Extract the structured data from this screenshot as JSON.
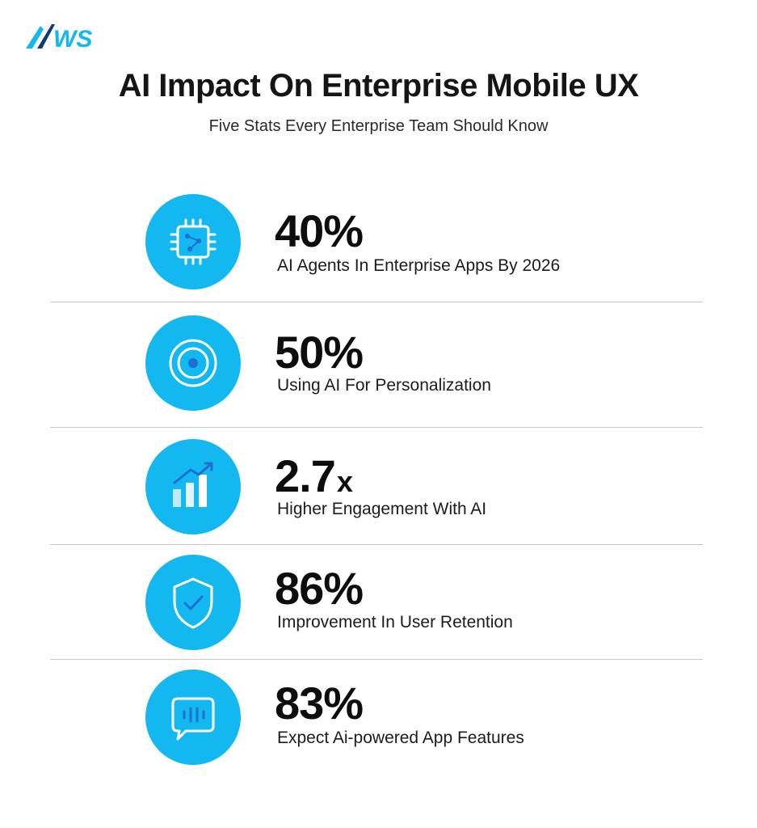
{
  "header": {
    "logo_text": "WS",
    "title": "AI Impact On Enterprise Mobile UX",
    "subtitle": "Five Stats Every Enterprise Team Should Know"
  },
  "stats": [
    {
      "value": "40%",
      "unit": "",
      "label": "AI Agents In Enterprise Apps By 2026",
      "icon": "chip-icon"
    },
    {
      "value": "50%",
      "unit": "",
      "label": "Using AI For Personalization",
      "icon": "target-icon"
    },
    {
      "value": "2.7",
      "unit": "x",
      "label": "Higher Engagement With AI",
      "icon": "growth-chart-icon"
    },
    {
      "value": "86%",
      "unit": "",
      "label": "Improvement In User Retention",
      "icon": "shield-check-icon"
    },
    {
      "value": "83%",
      "unit": "",
      "label": "Expect Ai-powered App Features",
      "icon": "chat-bubble-icon"
    }
  ],
  "colors": {
    "accent": "#12b8ef",
    "icon_dark": "#1f6fd1",
    "text": "#111111",
    "divider": "#c9c9c9"
  }
}
